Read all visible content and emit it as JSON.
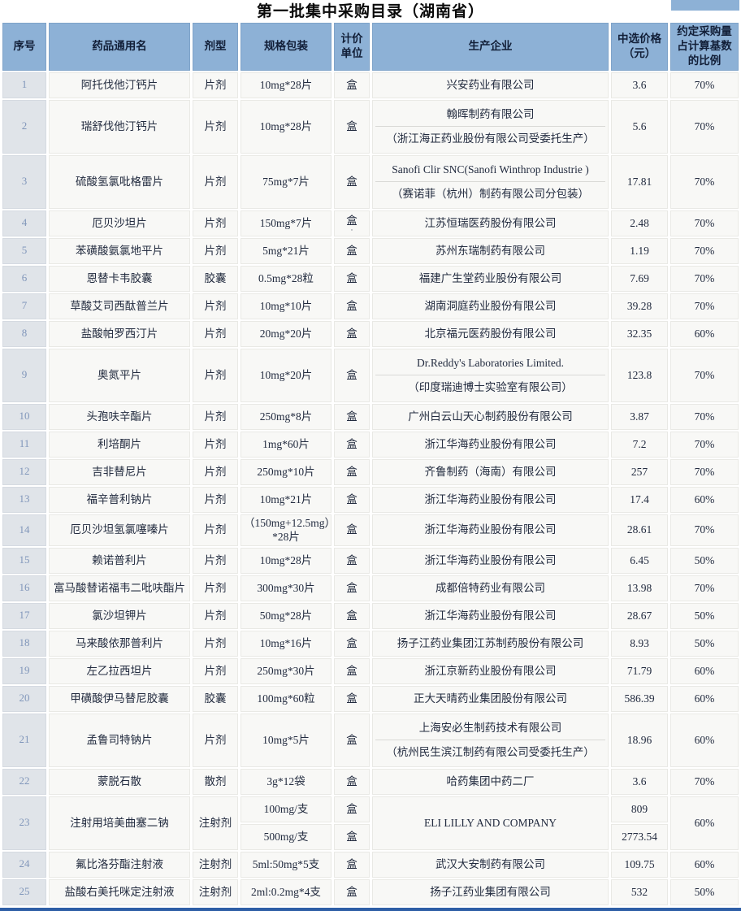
{
  "title": "第一批集中采购目录（湖南省）",
  "colors": {
    "header_bg": "#8db1d6",
    "index_column_bg": "#e0e4e9",
    "index_number_text": "#8096ba",
    "body_cell_bg": "#f8f8f6",
    "body_text": "#222b3f",
    "bottom_bar": "#2e5ea6"
  },
  "columns": [
    {
      "key": "no",
      "label": "序号"
    },
    {
      "key": "name",
      "label": "药品通用名"
    },
    {
      "key": "form",
      "label": "剂型"
    },
    {
      "key": "spec",
      "label": "规格包装"
    },
    {
      "key": "unit",
      "label": "计价单位"
    },
    {
      "key": "manufacturer",
      "label": "生产企业"
    },
    {
      "key": "price",
      "label": "中选价格（元）"
    },
    {
      "key": "ratio",
      "label": "约定采购量占计算基数的比例"
    }
  ],
  "rows": [
    {
      "no": "1",
      "name": "阿托伐他汀钙片",
      "form": "片剂",
      "spec": "10mg*28片",
      "unit": "盒",
      "manufacturer": "兴安药业有限公司",
      "price": "3.6",
      "ratio": "70%"
    },
    {
      "no": "2",
      "name": "瑞舒伐他汀钙片",
      "form": "片剂",
      "spec": "10mg*28片",
      "unit": "盒",
      "manufacturer": [
        "翰晖制药有限公司",
        "（浙江海正药业股份有限公司受委托生产）"
      ],
      "price": "5.6",
      "ratio": "70%"
    },
    {
      "no": "3",
      "name": "硫酸氢氯吡格雷片",
      "form": "片剂",
      "spec": "75mg*7片",
      "unit": "盒",
      "manufacturer": [
        "Sanofi Clir SNC(Sanofi Winthrop Industrie )",
        "（赛诺菲（杭州）制药有限公司分包装）"
      ],
      "price": "17.81",
      "ratio": "70%"
    },
    {
      "no": "4",
      "name": "厄贝沙坦片",
      "form": "片剂",
      "spec": "150mg*7片",
      "unit": "盒",
      "unit_note": "·",
      "manufacturer": "江苏恒瑞医药股份有限公司",
      "price": "2.48",
      "ratio": "70%"
    },
    {
      "no": "5",
      "name": "苯磺酸氨氯地平片",
      "form": "片剂",
      "spec": "5mg*21片",
      "unit": "盒",
      "manufacturer": "苏州东瑞制药有限公司",
      "price": "1.19",
      "ratio": "70%"
    },
    {
      "no": "6",
      "name": "恩替卡韦胶囊",
      "form": "胶囊",
      "spec": "0.5mg*28粒",
      "unit": "盒",
      "manufacturer": "福建广生堂药业股份有限公司",
      "price": "7.69",
      "ratio": "70%"
    },
    {
      "no": "7",
      "name": "草酸艾司西酞普兰片",
      "form": "片剂",
      "spec": "10mg*10片",
      "unit": "盒",
      "manufacturer": "湖南洞庭药业股份有限公司",
      "price": "39.28",
      "ratio": "70%"
    },
    {
      "no": "8",
      "name": "盐酸帕罗西汀片",
      "form": "片剂",
      "spec": "20mg*20片",
      "unit": "盒",
      "manufacturer": "北京福元医药股份有限公司",
      "price": "32.35",
      "ratio": "60%"
    },
    {
      "no": "9",
      "name": "奥氮平片",
      "form": "片剂",
      "spec": "10mg*20片",
      "unit": "盒",
      "manufacturer": [
        "Dr.Reddy's Laboratories Limited.",
        "（印度瑞迪博士实验室有限公司）"
      ],
      "price": "123.8",
      "ratio": "70%"
    },
    {
      "no": "10",
      "name": "头孢呋辛酯片",
      "form": "片剂",
      "spec": "250mg*8片",
      "unit": "盒",
      "manufacturer": "广州白云山天心制药股份有限公司",
      "price": "3.87",
      "ratio": "70%"
    },
    {
      "no": "11",
      "name": "利培酮片",
      "form": "片剂",
      "spec": "1mg*60片",
      "unit": "盒",
      "manufacturer": "浙江华海药业股份有限公司",
      "price": "7.2",
      "ratio": "70%"
    },
    {
      "no": "12",
      "name": "吉非替尼片",
      "form": "片剂",
      "spec": "250mg*10片",
      "unit": "盒",
      "manufacturer": "齐鲁制药（海南）有限公司",
      "price": "257",
      "ratio": "70%"
    },
    {
      "no": "13",
      "name": "福辛普利钠片",
      "form": "片剂",
      "spec": "10mg*21片",
      "unit": "盒",
      "manufacturer": "浙江华海药业股份有限公司",
      "price": "17.4",
      "ratio": "60%"
    },
    {
      "no": "14",
      "name": "厄贝沙坦氢氯噻嗪片",
      "form": "片剂",
      "spec": "（150mg+12.5mg）*28片",
      "unit": "盒",
      "manufacturer": "浙江华海药业股份有限公司",
      "price": "28.61",
      "ratio": "70%"
    },
    {
      "no": "15",
      "name": "赖诺普利片",
      "form": "片剂",
      "spec": "10mg*28片",
      "unit": "盒",
      "manufacturer": "浙江华海药业股份有限公司",
      "price": "6.45",
      "ratio": "50%"
    },
    {
      "no": "16",
      "name": "富马酸替诺福韦二吡呋酯片",
      "form": "片剂",
      "spec": "300mg*30片",
      "unit": "盒",
      "manufacturer": "成都倍特药业有限公司",
      "price": "13.98",
      "ratio": "70%"
    },
    {
      "no": "17",
      "name": "氯沙坦钾片",
      "form": "片剂",
      "spec": "50mg*28片",
      "unit": "盒",
      "manufacturer": "浙江华海药业股份有限公司",
      "price": "28.67",
      "ratio": "50%"
    },
    {
      "no": "18",
      "name": "马来酸依那普利片",
      "form": "片剂",
      "spec": "10mg*16片",
      "unit": "盒",
      "manufacturer": "扬子江药业集团江苏制药股份有限公司",
      "price": "8.93",
      "ratio": "50%"
    },
    {
      "no": "19",
      "name": "左乙拉西坦片",
      "form": "片剂",
      "spec": "250mg*30片",
      "unit": "盒",
      "manufacturer": "浙江京新药业股份有限公司",
      "price": "71.79",
      "ratio": "60%"
    },
    {
      "no": "20",
      "name": "甲磺酸伊马替尼胶囊",
      "form": "胶囊",
      "spec": "100mg*60粒",
      "unit": "盒",
      "manufacturer": "正大天晴药业集团股份有限公司",
      "price": "586.39",
      "ratio": "60%"
    },
    {
      "no": "21",
      "name": "孟鲁司特钠片",
      "form": "片剂",
      "spec": "10mg*5片",
      "unit": "盒",
      "manufacturer": [
        "上海安必生制药技术有限公司",
        "（杭州民生滨江制药有限公司受委托生产）"
      ],
      "price": "18.96",
      "ratio": "60%"
    },
    {
      "no": "22",
      "name": "蒙脱石散",
      "form": "散剂",
      "spec": "3g*12袋",
      "unit": "盒",
      "manufacturer": "哈药集团中药二厂",
      "price": "3.6",
      "ratio": "70%"
    },
    {
      "no": "23",
      "name": "注射用培美曲塞二钠",
      "form": "注射剂",
      "spec": [
        "100mg/支",
        "500mg/支"
      ],
      "unit": [
        "盒",
        "盒"
      ],
      "manufacturer": "ELI LILLY AND COMPANY",
      "price": [
        "809",
        "2773.54"
      ],
      "ratio": "60%"
    },
    {
      "no": "24",
      "name": "氟比洛芬酯注射液",
      "form": "注射剂",
      "spec": "5ml:50mg*5支",
      "unit": "盒",
      "manufacturer": "武汉大安制药有限公司",
      "price": "109.75",
      "ratio": "60%"
    },
    {
      "no": "25",
      "name": "盐酸右美托咪定注射液",
      "form": "注射剂",
      "spec": "2ml:0.2mg*4支",
      "unit": "盒",
      "manufacturer": "扬子江药业集团有限公司",
      "price": "532",
      "ratio": "50%"
    }
  ]
}
